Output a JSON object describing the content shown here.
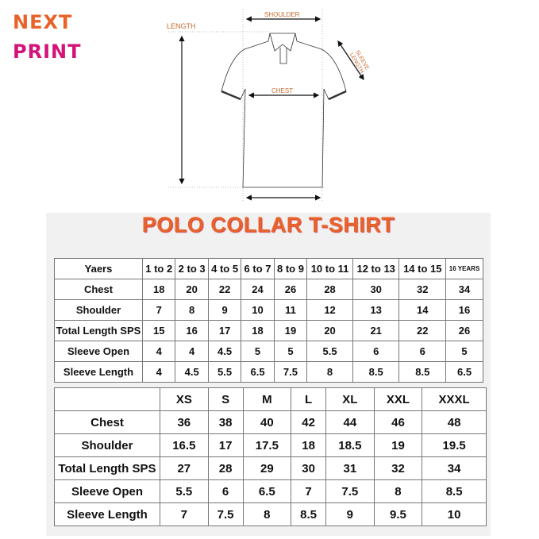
{
  "logo": {
    "line1": "NEXT",
    "line2": "PRINT"
  },
  "diagram": {
    "shoulder": "SHOULDER",
    "length": "LENGTH",
    "sleeve_length": "SLEEVE LENGTH",
    "chest": "CHEST"
  },
  "title": "POLO COLLAR T-SHIRT",
  "kids_table": {
    "header": [
      "Yaers",
      "1 to 2",
      "2 to 3",
      "4 to 5",
      "6 to 7",
      "8 to 9",
      "10 to 11",
      "12 to 13",
      "14 to 15",
      "16 YEARS"
    ],
    "rows": [
      [
        "Chest",
        "18",
        "20",
        "22",
        "24",
        "26",
        "28",
        "30",
        "32",
        "34"
      ],
      [
        "Shoulder",
        "7",
        "8",
        "9",
        "10",
        "11",
        "12",
        "13",
        "14",
        "16"
      ],
      [
        "Total Length SPS",
        "15",
        "16",
        "17",
        "18",
        "19",
        "20",
        "21",
        "22",
        "26"
      ],
      [
        "Sleeve Open",
        "4",
        "4",
        "4.5",
        "5",
        "5",
        "5.5",
        "6",
        "6",
        "5"
      ],
      [
        "Sleeve Length",
        "4",
        "4.5",
        "5.5",
        "6.5",
        "7.5",
        "8",
        "8.5",
        "8.5",
        "6.5"
      ]
    ]
  },
  "adult_table": {
    "header": [
      "",
      "XS",
      "S",
      "M",
      "L",
      "XL",
      "XXL",
      "XXXL"
    ],
    "rows": [
      [
        "Chest",
        "36",
        "38",
        "40",
        "42",
        "44",
        "46",
        "48"
      ],
      [
        "Shoulder",
        "16.5",
        "17",
        "17.5",
        "18",
        "18.5",
        "19",
        "19.5"
      ],
      [
        "Total Length SPS",
        "27",
        "28",
        "29",
        "30",
        "31",
        "32",
        "34"
      ],
      [
        "Sleeve Open",
        "5.5",
        "6",
        "6.5",
        "7",
        "7.5",
        "8",
        "8.5"
      ],
      [
        "Sleeve Length",
        "7",
        "7.5",
        "8",
        "8.5",
        "9",
        "9.5",
        "10"
      ]
    ]
  }
}
